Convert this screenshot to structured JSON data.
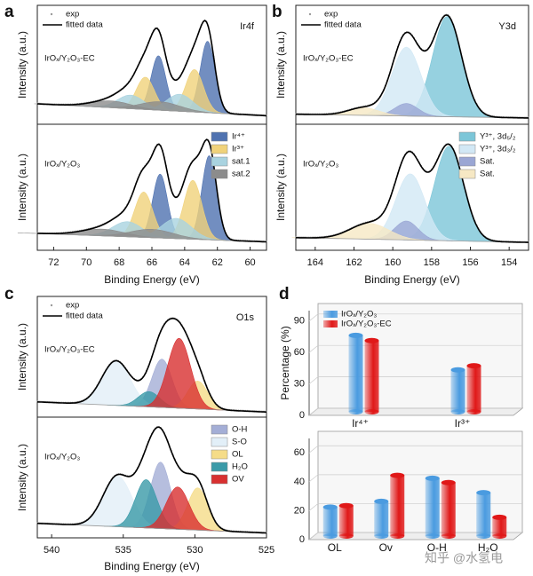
{
  "chart_data": [
    {
      "type": "xps",
      "panel": "a",
      "title": "Ir4f",
      "xlabel": "Binding Energy (eV)",
      "ylabel": "Intensity (a.u.)",
      "xlim": [
        73,
        59
      ],
      "xticks": [
        72,
        70,
        68,
        66,
        64,
        62,
        60
      ],
      "fit_legend": [
        {
          "name": "exp",
          "color": "#9a9a9a"
        },
        {
          "name": "fitted data",
          "color": "#000000"
        }
      ],
      "series": [
        {
          "name": "Ir⁴⁺",
          "color": "#4f72b0"
        },
        {
          "name": "Ir³⁺",
          "color": "#f0d27a"
        },
        {
          "name": "sat.1",
          "color": "#a9d3e0"
        },
        {
          "name": "sat.2",
          "color": "#8c8c8c"
        }
      ],
      "subplots": [
        {
          "label": "IrOₓ/Y₂O₃-EC",
          "ylim": [
            0,
            0.7
          ],
          "background": [
            0.12,
            0.05
          ],
          "peaks": [
            {
              "centers": [
                62.6,
                65.6
              ],
              "heights": [
                0.42,
                0.32
              ],
              "width": 0.45
            },
            {
              "centers": [
                63.4,
                66.4
              ],
              "heights": [
                0.25,
                0.19
              ],
              "width": 0.55
            },
            {
              "centers": [
                64.3,
                67.3
              ],
              "heights": [
                0.1,
                0.08
              ],
              "width": 0.8
            },
            {
              "centers": [
                65.5,
                68.5
              ],
              "heights": [
                0.05,
                0.04
              ],
              "width": 1.2
            }
          ]
        },
        {
          "label": "IrOₓ/Y₂O₃",
          "ylim": [
            0,
            0.75
          ],
          "background": [
            0.1,
            0.05
          ],
          "peaks": [
            {
              "centers": [
                62.5,
                65.5
              ],
              "heights": [
                0.5,
                0.38
              ],
              "width": 0.45
            },
            {
              "centers": [
                63.5,
                66.5
              ],
              "heights": [
                0.35,
                0.27
              ],
              "width": 0.55
            },
            {
              "centers": [
                64.5,
                67.5
              ],
              "heights": [
                0.12,
                0.09
              ],
              "width": 0.9
            },
            {
              "centers": [
                66,
                69
              ],
              "heights": [
                0.05,
                0.04
              ],
              "width": 1.3
            }
          ]
        }
      ]
    },
    {
      "type": "xps",
      "panel": "b",
      "title": "Y3d",
      "xlabel": "Binding Energy (eV)",
      "ylabel": "Intensity (a.u.)",
      "xlim": [
        165,
        153
      ],
      "xticks": [
        164,
        162,
        160,
        158,
        156,
        154
      ],
      "fit_legend": [
        {
          "name": "exp",
          "color": "#9a9a9a"
        },
        {
          "name": "fitted data",
          "color": "#000000"
        }
      ],
      "series": [
        {
          "name": "Y³⁺, 3d₅/₂",
          "color": "#7cc6d8"
        },
        {
          "name": "Y³⁺, 3d₃/₂",
          "color": "#d2e8f5"
        },
        {
          "name": "Sat.",
          "color": "#9aa6d4"
        },
        {
          "name": "Sat.",
          "color": "#f6e8c4"
        }
      ],
      "subplots": [
        {
          "label": "IrOₓ/Y₂O₃-EC",
          "ylim": [
            0,
            0.95
          ],
          "background": [
            0.08,
            0.05
          ],
          "peaks": [
            {
              "centers": [
                157.2
              ],
              "heights": [
                0.8
              ],
              "width": 0.75
            },
            {
              "centers": [
                159.3
              ],
              "heights": [
                0.55
              ],
              "width": 0.75
            },
            {
              "centers": [
                159.3
              ],
              "heights": [
                0.1
              ],
              "width": 0.6
            },
            {
              "centers": [
                161.5
              ],
              "heights": [
                0.06
              ],
              "width": 0.8
            }
          ]
        },
        {
          "label": "IrOₓ/Y₂O₃",
          "ylim": [
            0,
            0.8
          ],
          "background": [
            0.08,
            0.05
          ],
          "peaks": [
            {
              "centers": [
                157.1
              ],
              "heights": [
                0.6
              ],
              "width": 0.75
            },
            {
              "centers": [
                159.1
              ],
              "heights": [
                0.42
              ],
              "width": 0.75
            },
            {
              "centers": [
                159.3
              ],
              "heights": [
                0.12
              ],
              "width": 0.6
            },
            {
              "centers": [
                161.2
              ],
              "heights": [
                0.1
              ],
              "width": 1
            }
          ]
        }
      ]
    },
    {
      "type": "xps",
      "panel": "c",
      "title": "O1s",
      "xlabel": "Binding Energy (eV)",
      "ylabel": "Intensity (a.u.)",
      "xlim": [
        541,
        525
      ],
      "xticks": [
        540,
        535,
        530,
        525
      ],
      "fit_legend": [
        {
          "name": "exp",
          "color": "#9a9a9a"
        },
        {
          "name": "fitted data",
          "color": "#000000"
        }
      ],
      "series": [
        {
          "name": "O-H",
          "color": "#a4aed6"
        },
        {
          "name": "S-O",
          "color": "#e2eff8"
        },
        {
          "name": "OL",
          "color": "#f5dc88"
        },
        {
          "name": "H₂O",
          "color": "#3a9aa8"
        },
        {
          "name": "OV",
          "color": "#d83030"
        }
      ],
      "subplots": [
        {
          "label": "IrOₓ/Y₂O₃-EC",
          "ylim": [
            0,
            0.95
          ],
          "background": [
            0.12,
            0.04
          ],
          "peaks": [
            {
              "centers": [
                532.3
              ],
              "heights": [
                0.38
              ],
              "width": 0.7
            },
            {
              "centers": [
                535.5
              ],
              "heights": [
                0.35
              ],
              "width": 1
            },
            {
              "centers": [
                529.8
              ],
              "heights": [
                0.22
              ],
              "width": 0.7
            },
            {
              "centers": [
                533.2
              ],
              "heights": [
                0.12
              ],
              "width": 0.75
            },
            {
              "centers": [
                531.1
              ],
              "heights": [
                0.55
              ],
              "width": 0.8
            }
          ]
        },
        {
          "label": "IrOₓ/Y₂O₃",
          "ylim": [
            0,
            1
          ],
          "background": [
            0.12,
            0.04
          ],
          "peaks": [
            {
              "centers": [
                532.4
              ],
              "heights": [
                0.55
              ],
              "width": 0.7
            },
            {
              "centers": [
                535.4
              ],
              "heights": [
                0.42
              ],
              "width": 1
            },
            {
              "centers": [
                529.8
              ],
              "heights": [
                0.35
              ],
              "width": 0.7
            },
            {
              "centers": [
                533.4
              ],
              "heights": [
                0.4
              ],
              "width": 0.75
            },
            {
              "centers": [
                531.2
              ],
              "heights": [
                0.35
              ],
              "width": 0.8
            }
          ]
        }
      ]
    },
    {
      "type": "bar3d",
      "panel": "d",
      "ylabel": "Percentage (%)",
      "series": [
        {
          "name": "IrOₓ/Y₂O₃",
          "color": "#4a9be0"
        },
        {
          "name": "IrOₓ/Y₂O₃-EC",
          "color": "#e01818"
        }
      ],
      "subplots": [
        {
          "categories": [
            "Ir⁴⁺",
            "Ir³⁺"
          ],
          "values": [
            [
              73,
              40
            ],
            [
              68,
              44
            ]
          ],
          "ylim": [
            0,
            100
          ],
          "yticks": [
            0,
            30,
            60,
            90
          ]
        },
        {
          "categories": [
            "OL",
            "Ov",
            "O-H",
            "H₂O"
          ],
          "values": [
            [
              20,
              24,
              40,
              30
            ],
            [
              21,
              42,
              37,
              13
            ]
          ],
          "ylim": [
            0,
            70
          ],
          "yticks": [
            0,
            20,
            40,
            60
          ]
        }
      ]
    }
  ],
  "watermark": "知乎 @水氢电"
}
